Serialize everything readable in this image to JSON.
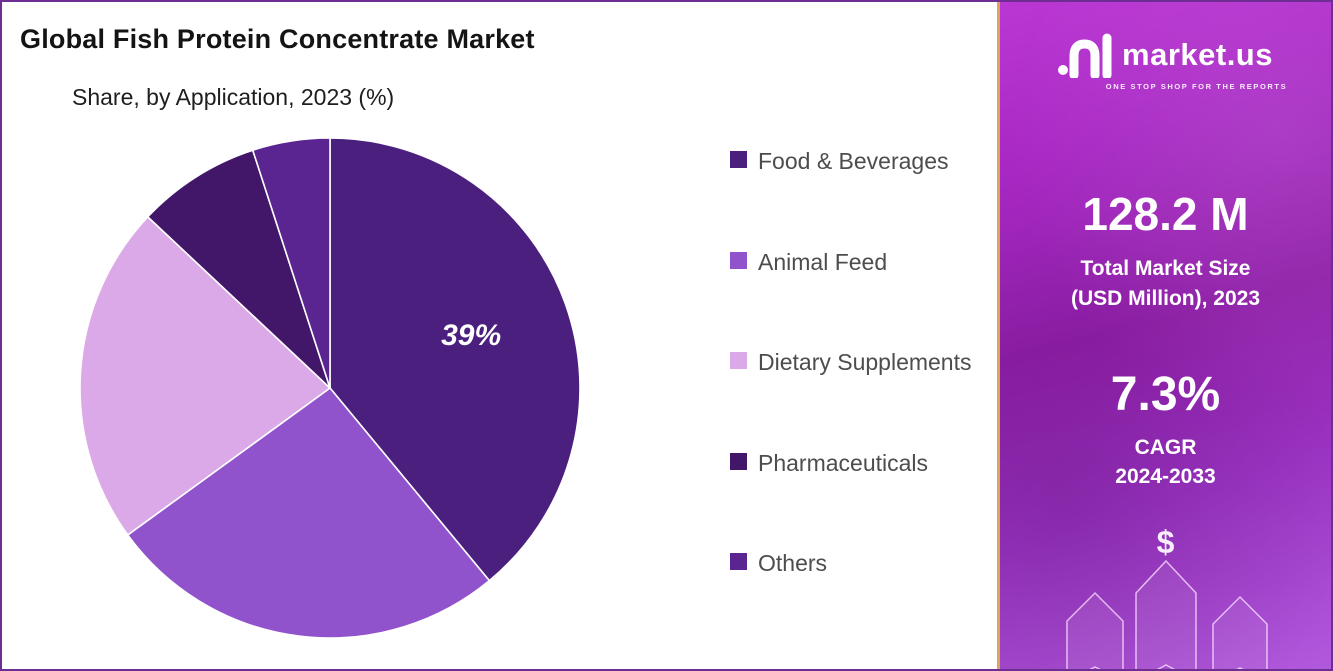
{
  "chart": {
    "title": "Global Fish Protein Concentrate Market",
    "subtitle": "Share, by Application, 2023 (%)"
  },
  "chart_data": {
    "type": "pie",
    "title": "Global Fish Protein Concentrate Market",
    "subtitle": "Share, by Application, 2023 (%)",
    "labels": [
      "Food & Beverages",
      "Animal Feed",
      "Dietary Supplements",
      "Pharmaceuticals",
      "Others"
    ],
    "values": [
      39,
      26,
      22,
      8,
      5
    ],
    "unit": "%",
    "colors": [
      "#4a1f7e",
      "#9153cc",
      "#dca9e8",
      "#421769",
      "#5b2591"
    ],
    "start_angle_deg": 0,
    "direction": "clockwise",
    "shown_data_labels": [
      {
        "slice_index": 0,
        "label": "39%"
      }
    ],
    "legend_position": "right"
  },
  "sidebar": {
    "logo_text": "market.us",
    "logo_tagline": "ONE STOP SHOP FOR THE REPORTS",
    "market_size_value": "128.2 M",
    "market_size_label_line1": "Total Market Size",
    "market_size_label_line2": "(USD Million), 2023",
    "cagr_value": "7.3%",
    "cagr_label_line1": "CAGR",
    "cagr_label_line2": "2024-2033",
    "dollar_symbol": "$"
  },
  "theme": {
    "panel_gradient_top": "#bb37d4",
    "panel_gradient_bottom": "#b159dd",
    "divider_gold": "#dca55a",
    "outer_border_purple": "#6e2d92"
  }
}
